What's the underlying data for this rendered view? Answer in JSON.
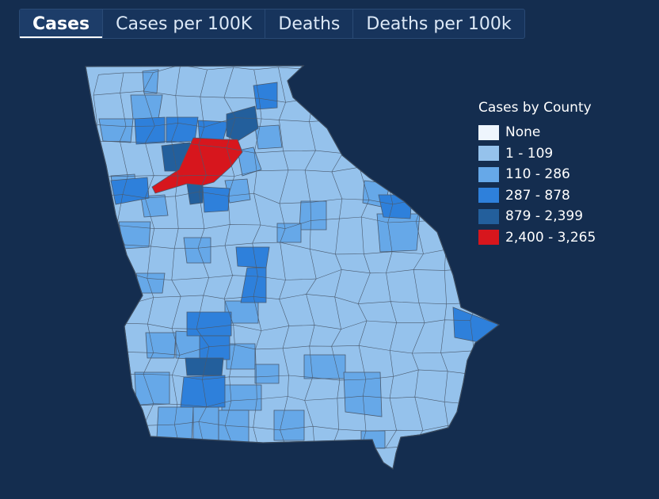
{
  "tabs": [
    {
      "label": "Cases",
      "active": true
    },
    {
      "label": "Cases per 100K",
      "active": false
    },
    {
      "label": "Deaths",
      "active": false
    },
    {
      "label": "Deaths per 100k",
      "active": false
    }
  ],
  "legend": {
    "title": "Cases by County",
    "items": [
      {
        "label": "None",
        "color": "#eef5fd"
      },
      {
        "label": "1 - 109",
        "color": "#95c2ec"
      },
      {
        "label": "110 - 286",
        "color": "#66a8e8"
      },
      {
        "label": "287 - 878",
        "color": "#2e80db"
      },
      {
        "label": "879 - 2,399",
        "color": "#235f9c"
      },
      {
        "label": "2,400 - 3,265",
        "color": "#d7161d"
      }
    ]
  },
  "map": {
    "state": "Georgia",
    "border_color": "#3a4a5e"
  }
}
